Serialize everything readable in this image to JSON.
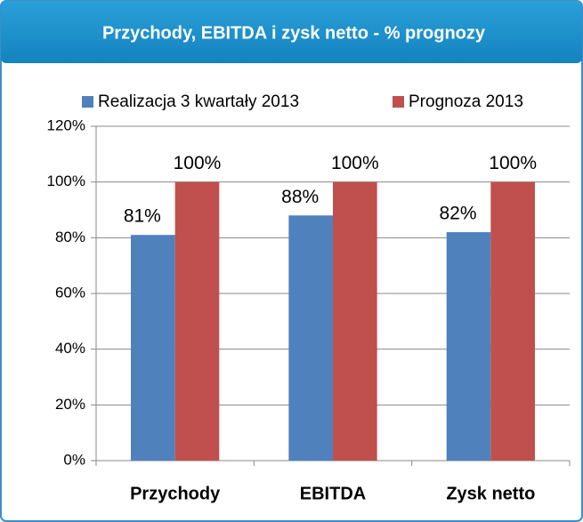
{
  "chart_data": {
    "type": "bar",
    "title": "Przychody, EBITDA i zysk netto - % prognozy",
    "categories": [
      "Przychody",
      "EBITDA",
      "Zysk netto"
    ],
    "series": [
      {
        "name": "Realizacja 3 kwartały 2013",
        "color": "#4f81bd",
        "values": [
          81,
          88,
          82
        ],
        "value_labels": [
          "81%",
          "88%",
          "82%"
        ]
      },
      {
        "name": "Prognoza 2013",
        "color": "#c0504d",
        "values": [
          100,
          100,
          100
        ],
        "value_labels": [
          "100%",
          "100%",
          "100%"
        ]
      }
    ],
    "ylim": [
      0,
      120
    ],
    "yticks": [
      {
        "value": 0,
        "label": "0%"
      },
      {
        "value": 20,
        "label": "20%"
      },
      {
        "value": 40,
        "label": "40%"
      },
      {
        "value": 60,
        "label": "60%"
      },
      {
        "value": 80,
        "label": "80%"
      },
      {
        "value": 100,
        "label": "100%"
      },
      {
        "value": 120,
        "label": "120%"
      }
    ],
    "grid": true,
    "legend": "top"
  }
}
